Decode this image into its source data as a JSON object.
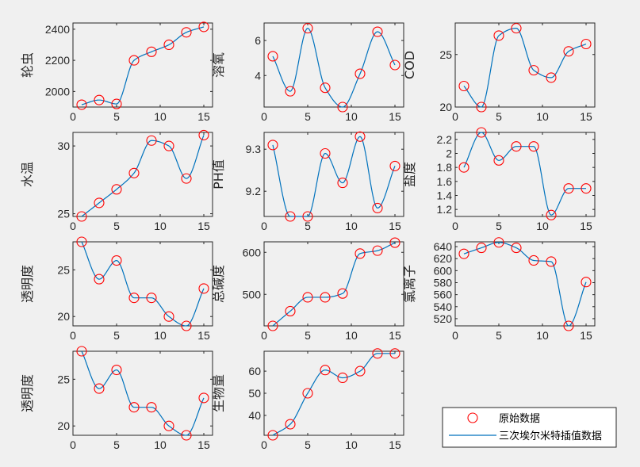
{
  "chart_data": [
    {
      "type": "line",
      "ylabel": "轮虫",
      "x": [
        1,
        3,
        5,
        7,
        9,
        11,
        13,
        15
      ],
      "values": [
        1915,
        1945,
        1920,
        2200,
        2255,
        2300,
        2380,
        2415
      ],
      "xlim": [
        0,
        16
      ],
      "ylim": [
        1900,
        2440
      ],
      "xticks": [
        0,
        5,
        10,
        15
      ],
      "yticks": [
        2000,
        2200,
        2400
      ]
    },
    {
      "type": "line",
      "ylabel": "溶氧",
      "x": [
        1,
        3,
        5,
        7,
        9,
        11,
        13,
        15
      ],
      "values": [
        5.1,
        3.1,
        6.7,
        3.3,
        2.2,
        4.1,
        6.5,
        4.6
      ],
      "xlim": [
        0,
        16
      ],
      "ylim": [
        2.2,
        7.0
      ],
      "xticks": [
        0,
        5,
        10,
        15
      ],
      "yticks": [
        4,
        6
      ]
    },
    {
      "type": "line",
      "ylabel": "COD",
      "x": [
        1,
        3,
        5,
        7,
        9,
        11,
        13,
        15
      ],
      "values": [
        22,
        20,
        26.8,
        27.5,
        23.5,
        22.8,
        25.3,
        26
      ],
      "xlim": [
        0,
        16
      ],
      "ylim": [
        20,
        28
      ],
      "xticks": [
        0,
        5,
        10,
        15
      ],
      "yticks": [
        20,
        25
      ]
    },
    {
      "type": "line",
      "ylabel": "水温",
      "x": [
        1,
        3,
        5,
        7,
        9,
        11,
        13,
        15
      ],
      "values": [
        24.8,
        25.8,
        26.8,
        28,
        30.4,
        30,
        27.6,
        30.8
      ],
      "xlim": [
        0,
        16
      ],
      "ylim": [
        24.8,
        31
      ],
      "xticks": [
        0,
        5,
        10,
        15
      ],
      "yticks": [
        25,
        30
      ]
    },
    {
      "type": "line",
      "ylabel": "PH值",
      "x": [
        1,
        3,
        5,
        7,
        9,
        11,
        13,
        15
      ],
      "values": [
        9.31,
        9.14,
        9.14,
        9.29,
        9.22,
        9.33,
        9.16,
        9.26
      ],
      "xlim": [
        0,
        16
      ],
      "ylim": [
        9.14,
        9.34
      ],
      "xticks": [
        0,
        5,
        10,
        15
      ],
      "yticks": [
        9.2,
        9.3
      ]
    },
    {
      "type": "line",
      "ylabel": "盐度",
      "x": [
        1,
        3,
        5,
        7,
        9,
        11,
        13,
        15
      ],
      "values": [
        1.8,
        2.3,
        1.9,
        2.1,
        2.1,
        1.12,
        1.5,
        1.5
      ],
      "xlim": [
        0,
        16
      ],
      "ylim": [
        1.1,
        2.3
      ],
      "xticks": [
        0,
        5,
        10,
        15
      ],
      "yticks": [
        1.2,
        1.4,
        1.6,
        1.8,
        2.0,
        2.2
      ],
      "ytick_labels": [
        "1.2",
        "1.4",
        "1.6",
        "1.8",
        "2",
        "2.2"
      ]
    },
    {
      "type": "line",
      "ylabel": "透明度",
      "x": [
        1,
        3,
        5,
        7,
        9,
        11,
        13,
        15
      ],
      "values": [
        28,
        24,
        26,
        22,
        22,
        20,
        19,
        23
      ],
      "xlim": [
        0,
        16
      ],
      "ylim": [
        19,
        28
      ],
      "xticks": [
        0,
        5,
        10,
        15
      ],
      "yticks": [
        20,
        25
      ]
    },
    {
      "type": "line",
      "ylabel": "总碱度",
      "x": [
        1,
        3,
        5,
        7,
        9,
        11,
        13,
        15
      ],
      "values": [
        425,
        460,
        493,
        493,
        502,
        597,
        604,
        623
      ],
      "xlim": [
        0,
        16
      ],
      "ylim": [
        425,
        625
      ],
      "xticks": [
        0,
        5,
        10,
        15
      ],
      "yticks": [
        500,
        600
      ]
    },
    {
      "type": "line",
      "ylabel": "氯离子",
      "x": [
        1,
        3,
        5,
        7,
        9,
        11,
        13,
        15
      ],
      "values": [
        628,
        638,
        647,
        638,
        617,
        615,
        508,
        581
      ],
      "xlim": [
        0,
        16
      ],
      "ylim": [
        508,
        648
      ],
      "xticks": [
        0,
        5,
        10,
        15
      ],
      "yticks": [
        520,
        540,
        560,
        580,
        600,
        620,
        640
      ]
    },
    {
      "type": "line",
      "ylabel": "透明度",
      "x": [
        1,
        3,
        5,
        7,
        9,
        11,
        13,
        15
      ],
      "values": [
        28,
        24,
        26,
        22,
        22,
        20,
        19,
        23
      ],
      "xlim": [
        0,
        16
      ],
      "ylim": [
        19,
        28
      ],
      "xticks": [
        0,
        5,
        10,
        15
      ],
      "yticks": [
        20,
        25
      ]
    },
    {
      "type": "line",
      "ylabel": "生物量",
      "x": [
        1,
        3,
        5,
        7,
        9,
        11,
        13,
        15
      ],
      "values": [
        31,
        36,
        50,
        60.5,
        57,
        60,
        68,
        68
      ],
      "xlim": [
        0,
        16
      ],
      "ylim": [
        31,
        69
      ],
      "xticks": [
        0,
        5,
        10,
        15
      ],
      "yticks": [
        40,
        50,
        60
      ]
    }
  ],
  "legend": {
    "placement": "bottom-right",
    "entries": [
      {
        "label": "原始数据",
        "style": "red-circle-marker"
      },
      {
        "label": "三次埃尔米特插值数据",
        "style": "blue-line"
      }
    ]
  },
  "colors": {
    "background": "#f0f0f0",
    "plot_bg": "#ffffff",
    "line": "#0072bd",
    "marker": "#ff0000",
    "axis": "#262626"
  }
}
